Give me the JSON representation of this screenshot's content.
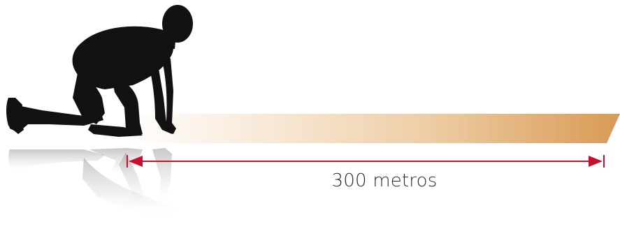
{
  "measurement": {
    "label": "300 metros"
  },
  "colors": {
    "track_end": "#d99a55",
    "track_start": "#ffffff",
    "arrow": "#c8102e",
    "runner": "#111111"
  },
  "icons": {
    "runner": "runner-crouch-silhouette-icon",
    "reflection": "runner-reflection-icon"
  }
}
